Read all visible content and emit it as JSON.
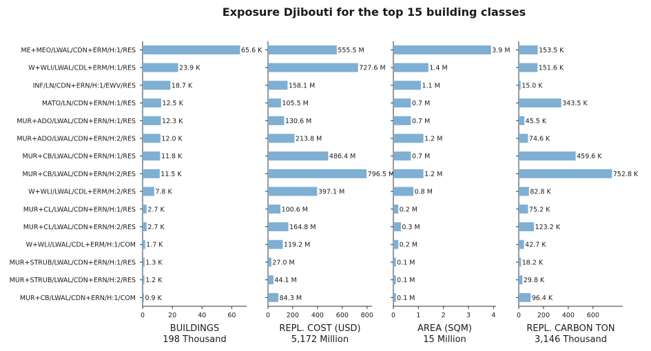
{
  "chart_data": {
    "type": "bar",
    "orientation": "horizontal",
    "title": "Exposure Djibouti for the top 15 building classes",
    "categories": [
      "ME+MEO/LWAL/CDN+ERM/H:1/RES",
      "W+WLI/LWAL/CDL+ERM/H:1/RES",
      "INF/LN/CDN+ERN/H:1/EWV/RES",
      "MATO/LN/CDN+ERN/H:1/RES",
      "MUR+ADO/LWAL/CDN+ERN/H:1/RES",
      "MUR+ADO/LWAL/CDN+ERN/H:2/RES",
      "MUR+CB/LWAL/CDN+ERN/H:1/RES",
      "MUR+CB/LWAL/CDN+ERN/H:2/RES",
      "W+WLI/LWAL/CDL+ERM/H:2/RES",
      "MUR+CL/LWAL/CDN+ERN/H:1/RES",
      "MUR+CL/LWAL/CDN+ERN/H:2/RES",
      "W+WLI/LWAL/CDL+ERM/H:1/COM",
      "MUR+STRUB/LWAL/CDN+ERN/H:1/RES",
      "MUR+STRUB/LWAL/CDN+ERN/H:2/RES",
      "MUR+CB/LWAL/CDN+ERN/H:1/COM"
    ],
    "bar_color": "#7fafd3",
    "panels": [
      {
        "xlabel": "BUILDINGS",
        "total": "198 Thousand",
        "xlim": [
          0,
          70
        ],
        "ticks": [
          0,
          20,
          40,
          60
        ],
        "unit": "K",
        "values": [
          65.6,
          23.9,
          18.7,
          12.5,
          12.3,
          12.0,
          11.8,
          11.5,
          7.8,
          2.7,
          2.7,
          1.7,
          1.3,
          1.2,
          0.9
        ],
        "labels": [
          "65.6 K",
          "23.9 K",
          "18.7 K",
          "12.5 K",
          "12.3 K",
          "12.0 K",
          "11.8 K",
          "11.5 K",
          "7.8 K",
          "2.7 K",
          "2.7 K",
          "1.7 K",
          "1.3 K",
          "1.2 K",
          "0.9 K"
        ]
      },
      {
        "xlabel": "REPL. COST (USD)",
        "total": "5,172 Million",
        "xlim": [
          0,
          840
        ],
        "ticks": [
          0,
          200,
          400,
          600,
          800
        ],
        "unit": "M",
        "values": [
          555.5,
          727.6,
          158.1,
          105.5,
          130.6,
          213.8,
          486.4,
          796.5,
          397.1,
          100.6,
          164.8,
          119.2,
          27.0,
          44.1,
          84.3
        ],
        "labels": [
          "555.5 M",
          "727.6 M",
          "158.1 M",
          "105.5 M",
          "130.6 M",
          "213.8 M",
          "486.4 M",
          "796.5 M",
          "397.1 M",
          "100.6 M",
          "164.8 M",
          "119.2 M",
          "27.0 M",
          "44.1 M",
          "84.3 M"
        ]
      },
      {
        "xlabel": "AREA (SQM)",
        "total": "15 Million",
        "xlim": [
          0,
          4.1
        ],
        "ticks": [
          0,
          1,
          2,
          3,
          4
        ],
        "unit": "M",
        "values": [
          3.9,
          1.4,
          1.1,
          0.7,
          0.7,
          1.2,
          0.7,
          1.2,
          0.8,
          0.2,
          0.3,
          0.2,
          0.1,
          0.1,
          0.1
        ],
        "labels": [
          "3.9 M",
          "1.4 M",
          "1.1 M",
          "0.7 M",
          "0.7 M",
          "1.2 M",
          "0.7 M",
          "1.2 M",
          "0.8 M",
          "0.2 M",
          "0.3 M",
          "0.2 M",
          "0.1 M",
          "0.1 M",
          "0.1 M"
        ]
      },
      {
        "xlabel": "REPL. CARBON TON",
        "total": "3,146 Thousand",
        "xlim": [
          0,
          840
        ],
        "ticks": [
          0,
          200,
          400,
          600
        ],
        "unit": "K",
        "values": [
          153.5,
          151.6,
          15.0,
          343.5,
          45.5,
          74.6,
          459.6,
          752.8,
          82.8,
          75.2,
          123.2,
          42.7,
          18.2,
          29.8,
          96.4
        ],
        "labels": [
          "153.5 K",
          "151.6 K",
          "15.0 K",
          "343.5 K",
          "45.5 K",
          "74.6 K",
          "459.6 K",
          "752.8 K",
          "82.8 K",
          "75.2 K",
          "123.2 K",
          "42.7 K",
          "18.2 K",
          "29.8 K",
          "96.4 K"
        ]
      }
    ]
  }
}
